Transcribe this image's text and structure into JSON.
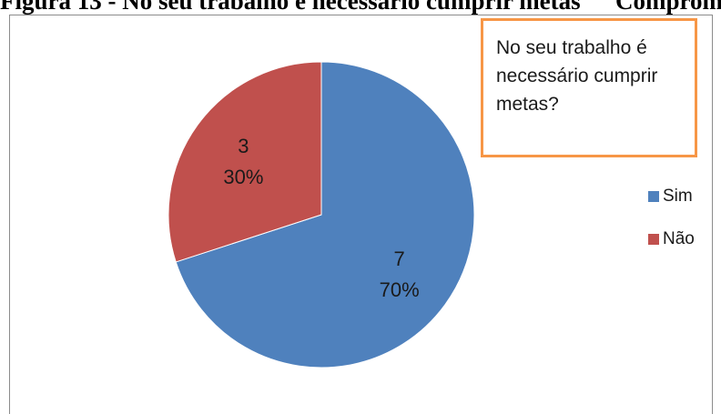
{
  "heading": {
    "left_text": "Figura 13 - No seu trabalho é necessário cumprir metas",
    "right_text": "Compromisso"
  },
  "chart_data": {
    "type": "pie",
    "title": "No seu trabalho é necessário cumprir metas?",
    "categories": [
      "Sim",
      "Não"
    ],
    "values": [
      7,
      3
    ],
    "percentages": [
      "70%",
      "30%"
    ],
    "colors": [
      "#4f81bd",
      "#c0504d"
    ],
    "legend_position": "right"
  },
  "legend": {
    "items": [
      {
        "label": "Sim",
        "color": "#4f81bd"
      },
      {
        "label": "Não",
        "color": "#c0504d"
      }
    ]
  }
}
